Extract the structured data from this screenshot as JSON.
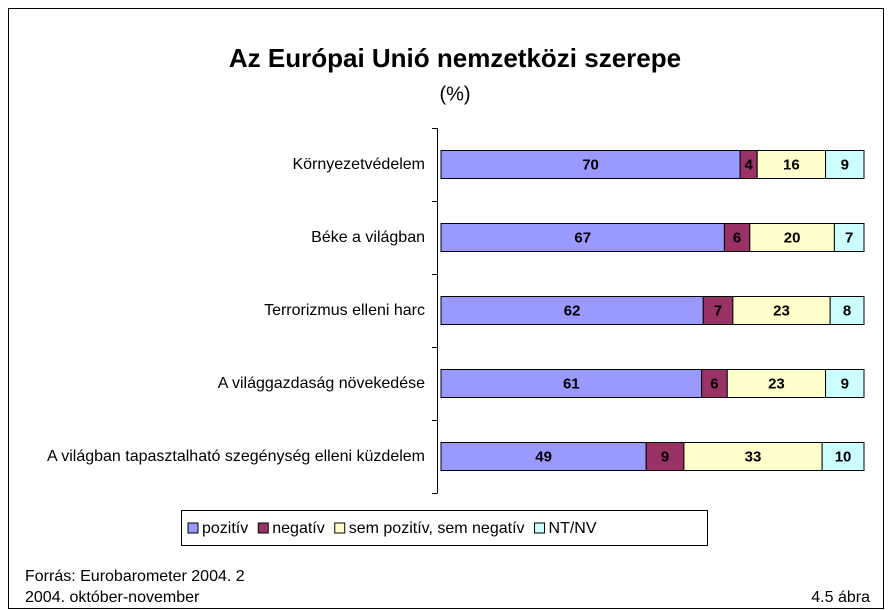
{
  "chart_data": {
    "type": "stacked-bar-horizontal",
    "title": "Az Európai Unió nemzetközi szerepe",
    "subtitle": "(%)",
    "categories": [
      "Környezetvédelem",
      "Béke a világban",
      "Terrorizmus elleni harc",
      "A világgazdaság növekedése",
      "A világban tapasztalható szegénység elleni küzdelem"
    ],
    "series": [
      {
        "name": "pozitív",
        "color": "#9999ff",
        "values": [
          70,
          67,
          62,
          61,
          49
        ]
      },
      {
        "name": "negatív",
        "color": "#993366",
        "values": [
          4,
          6,
          7,
          6,
          9
        ]
      },
      {
        "name": "sem pozitív, sem negatív",
        "color": "#ffffcc",
        "values": [
          16,
          20,
          23,
          23,
          33
        ]
      },
      {
        "name": "NT/NV",
        "color": "#ccffff",
        "values": [
          9,
          7,
          8,
          9,
          10
        ]
      }
    ],
    "legend": "bottom",
    "source": [
      "Forrás: Eurobarometer 2004. 2",
      "2004. október-november"
    ],
    "figure_label": "4.5 ábra"
  }
}
